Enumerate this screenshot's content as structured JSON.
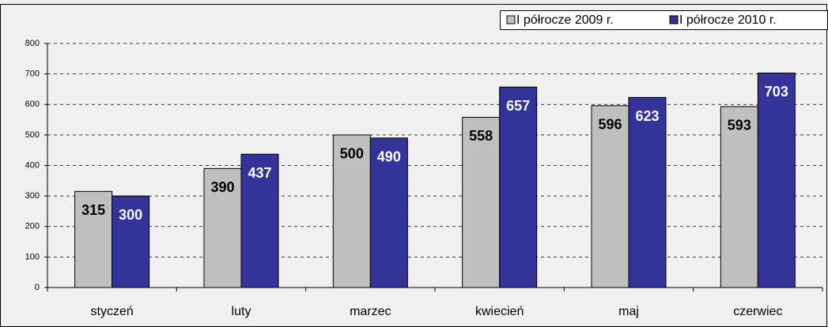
{
  "chart_data": {
    "type": "bar",
    "categories": [
      "styczeń",
      "luty",
      "marzec",
      "kwiecień",
      "maj",
      "czerwiec"
    ],
    "series": [
      {
        "name": "I półrocze 2009 r.",
        "color": "#c0c0c0",
        "label_color": "#000000",
        "values": [
          315,
          390,
          500,
          558,
          596,
          593
        ]
      },
      {
        "name": "I półrocze 2010 r.",
        "color": "#333399",
        "label_color": "#ffffff",
        "values": [
          300,
          437,
          490,
          657,
          623,
          703
        ]
      }
    ],
    "ylim": [
      0,
      800
    ],
    "yticks": [
      0,
      100,
      200,
      300,
      400,
      500,
      600,
      700,
      800
    ],
    "grid": true,
    "legend": "top-right"
  }
}
